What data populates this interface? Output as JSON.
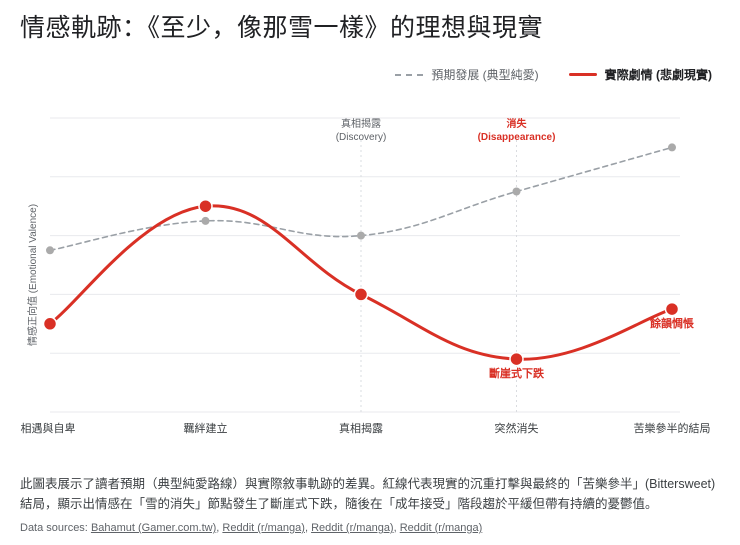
{
  "page": {
    "title": "情感軌跡：《至少，像那雪一樣》的理想與現實",
    "description": "此圖表展示了讀者預期（典型純愛路線）與實際敘事軌跡的差異。紅線代表現實的沉重打擊與最終的「苦樂參半」(Bittersweet)結局，顯示出情感在「雪的消失」節點發生了斷崖式下跌，隨後在「成年接受」階段趨於平緩但帶有持續的憂鬱值。",
    "sources_label": "Data sources:",
    "sources": [
      "Bahamut (Gamer.com.tw)",
      "Reddit (r/manga)",
      "Reddit (r/manga)",
      "Reddit (r/manga)"
    ]
  },
  "colors": {
    "expected": "#9aa0a6",
    "actual": "#d93025",
    "grid": "#e8eaed"
  },
  "chart_data": {
    "type": "line",
    "categories": [
      "相遇與自卑",
      "羈絆建立",
      "真相揭露",
      "突然消失",
      "苦樂參半的結局"
    ],
    "ylabel": "情感正向值 (Emotional Valence)",
    "xlabel": "",
    "ylim": [
      0,
      10
    ],
    "grid": true,
    "legend_position": "top-right",
    "series": [
      {
        "name": "預期發展 (典型純愛)",
        "style": "dashed",
        "values": [
          5.5,
          6.5,
          6.0,
          7.5,
          9.0
        ]
      },
      {
        "name": "實際劇情 (悲劇現實)",
        "style": "solid",
        "values": [
          3.0,
          7.0,
          4.0,
          1.8,
          3.5
        ]
      }
    ],
    "point_labels": [
      {
        "series": 1,
        "index": 3,
        "text": "斷崖式下跌"
      },
      {
        "series": 1,
        "index": 4,
        "text": "餘韻惆悵"
      }
    ],
    "vertical_markers": [
      {
        "index": 2,
        "lines": [
          "真相揭露",
          "(Discovery)"
        ],
        "tone": "gray"
      },
      {
        "index": 3,
        "lines": [
          "消失",
          "(Disappearance)"
        ],
        "tone": "red"
      }
    ]
  }
}
